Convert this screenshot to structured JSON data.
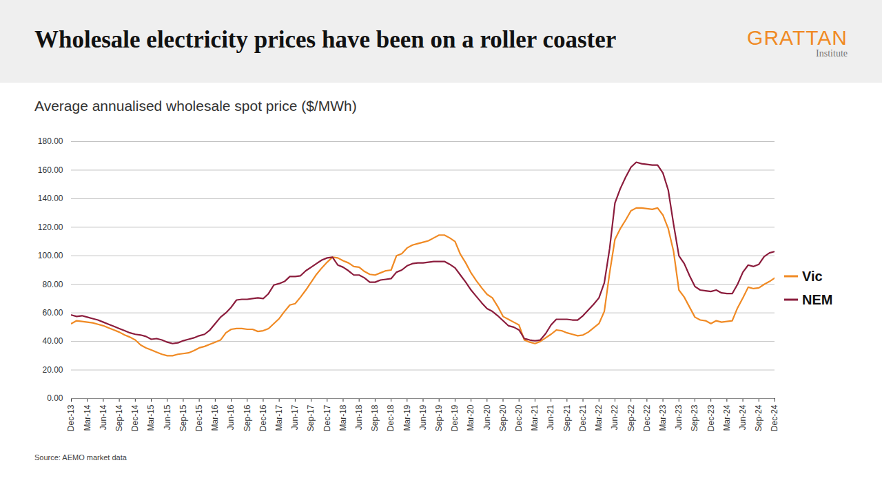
{
  "chart_data": {
    "type": "line",
    "title": "Wholesale electricity prices have been on a roller coaster",
    "subtitle": "Average annualised wholesale spot price ($/MWh)",
    "source": "Source: AEMO market data",
    "logo": {
      "name": "GRATTAN",
      "sub": "Institute"
    },
    "categories": [
      "Dec-13",
      null,
      null,
      "Mar-14",
      null,
      null,
      "Jun-14",
      null,
      null,
      "Sep-14",
      null,
      null,
      "Dec-14",
      null,
      null,
      "Mar-15",
      null,
      null,
      "Jun-15",
      null,
      null,
      "Sep-15",
      null,
      null,
      "Dec-15",
      null,
      null,
      "Mar-16",
      null,
      null,
      "Jun-16",
      null,
      null,
      "Sep-16",
      null,
      null,
      "Dec-16",
      null,
      null,
      "Mar-17",
      null,
      null,
      "Jun-17",
      null,
      null,
      "Sep-17",
      null,
      null,
      "Dec-17",
      null,
      null,
      "Mar-18",
      null,
      null,
      "Jun-18",
      null,
      null,
      "Sep-18",
      null,
      null,
      "Dec-18",
      null,
      null,
      "Mar-19",
      null,
      null,
      "Jun-19",
      null,
      null,
      "Sep-19",
      null,
      null,
      "Dec-19",
      null,
      null,
      "Mar-20",
      null,
      null,
      "Jun-20",
      null,
      null,
      "Sep-20",
      null,
      null,
      "Dec-20",
      null,
      null,
      "Mar-21",
      null,
      null,
      "Jun-21",
      null,
      null,
      "Sep-21",
      null,
      null,
      "Dec-21",
      null,
      null,
      "Mar-22",
      null,
      null,
      "Jun-22",
      null,
      null,
      "Sep-22",
      null,
      null,
      "Dec-22",
      null,
      null,
      "Mar-23",
      null,
      null,
      "Jun-23",
      null,
      null,
      "Sep-23",
      null,
      null,
      "Dec-23",
      null,
      null,
      "Mar-24",
      null,
      null,
      "Jun-24",
      null,
      null,
      "Sep-24",
      null,
      null,
      "Dec-24"
    ],
    "series": [
      {
        "name": "Vic",
        "color": "#f08a24",
        "values": [
          52.5,
          54.5,
          54,
          53.5,
          53,
          52,
          51,
          49.5,
          48,
          46.5,
          44.5,
          43,
          41,
          37.5,
          35.5,
          34,
          32.5,
          31,
          30,
          30,
          31,
          31.5,
          32,
          33.5,
          35.5,
          36.5,
          38,
          39.5,
          41,
          46,
          48.5,
          49,
          49,
          48.5,
          48.5,
          47,
          47.5,
          49,
          52.5,
          56,
          61,
          65.5,
          66.5,
          71,
          76,
          81.5,
          87,
          91.5,
          95.5,
          99,
          98.5,
          96.5,
          95,
          92.5,
          92,
          89,
          87,
          86.5,
          88,
          89.5,
          90,
          100,
          101.5,
          105.5,
          107.5,
          108.5,
          109.5,
          110.5,
          112.5,
          114.5,
          114.5,
          112.5,
          110,
          101,
          95,
          88,
          82.5,
          77.5,
          73,
          70.5,
          64.5,
          57.5,
          55.5,
          53.5,
          51.5,
          41,
          39.5,
          38.5,
          40,
          42.5,
          45,
          48,
          47.5,
          46,
          45,
          44,
          44.5,
          46.5,
          49.5,
          52.5,
          61,
          88,
          111.5,
          119,
          125,
          131.5,
          133.5,
          133.5,
          133,
          132.5,
          133.5,
          128.5,
          119,
          103,
          76,
          71,
          64,
          57,
          55,
          54.5,
          52.5,
          54.5,
          53.5,
          54,
          54.5,
          63.5,
          70.5,
          78,
          77,
          77.5,
          80,
          82,
          84.5
        ]
      },
      {
        "name": "NEM",
        "color": "#8b1c3c",
        "values": [
          58.5,
          57.5,
          58,
          57,
          56,
          55,
          53.5,
          52,
          50.5,
          49,
          47.5,
          46,
          45,
          44.5,
          43.5,
          41.5,
          42,
          41,
          39.5,
          38.5,
          39,
          40.5,
          41.5,
          42.5,
          44,
          45,
          48,
          52.5,
          57,
          60,
          64,
          69,
          69.5,
          69.5,
          70,
          70.5,
          70,
          73.5,
          79.5,
          80.5,
          82,
          85.5,
          85.5,
          86,
          89.5,
          92,
          94.5,
          97,
          98.5,
          99,
          93.5,
          92,
          89.5,
          86.5,
          86.5,
          84.5,
          81.5,
          81.5,
          83,
          83.5,
          84,
          88.5,
          90,
          93,
          94.5,
          95,
          95,
          95.5,
          96,
          96,
          96,
          94,
          91.5,
          86.5,
          81.5,
          76,
          71.5,
          67,
          63,
          61,
          58,
          54.5,
          51,
          50,
          48,
          42,
          41,
          40.5,
          41,
          45.5,
          51.5,
          55.5,
          55.5,
          55.5,
          55,
          55,
          58,
          62,
          66,
          70.5,
          81,
          105,
          137,
          147,
          155,
          162,
          165.5,
          164.5,
          164,
          163.5,
          163.5,
          158,
          146,
          122,
          100,
          94.5,
          86,
          78.5,
          76,
          75.5,
          75,
          76,
          74,
          73.5,
          73.5,
          80,
          88.5,
          93.5,
          92.5,
          94,
          99.5,
          102,
          103
        ]
      }
    ],
    "ylim": [
      0,
      180
    ],
    "yticks": [
      {
        "value": 0,
        "label": "0.00"
      },
      {
        "value": 20,
        "label": "20.00"
      },
      {
        "value": 40,
        "label": "40.00"
      },
      {
        "value": 60,
        "label": "60.00"
      },
      {
        "value": 80,
        "label": "80.00"
      },
      {
        "value": 100,
        "label": "100.00"
      },
      {
        "value": 120,
        "label": "120.00"
      },
      {
        "value": 140,
        "label": "140.00"
      },
      {
        "value": 160,
        "label": "160.00"
      },
      {
        "value": 180,
        "label": "180.00"
      }
    ],
    "grid": true,
    "legend": "right"
  }
}
